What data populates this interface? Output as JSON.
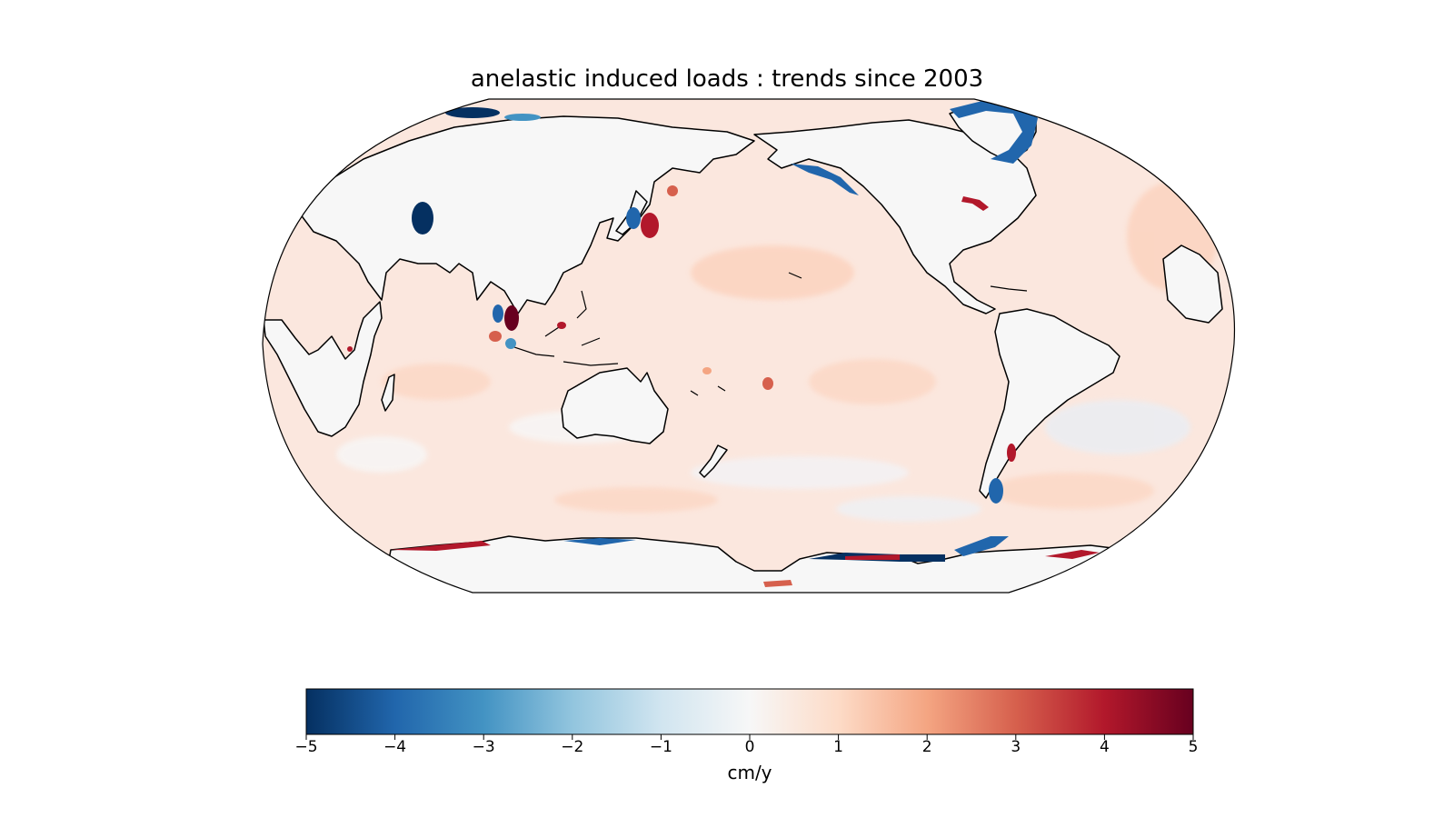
{
  "title": "anelastic induced loads : trends since 2003",
  "map": {
    "projection": "robinson",
    "center": "pacific",
    "background": "#f7f7f7",
    "coastline_color": "#000000",
    "features": [
      {
        "name": "hudson-bay-anomaly",
        "sign": "negative"
      },
      {
        "name": "greenland-anomaly",
        "sign": "negative"
      },
      {
        "name": "alaska-coast-anomaly",
        "sign": "negative"
      },
      {
        "name": "japan-anomaly",
        "sign": "positive"
      },
      {
        "name": "sumatra-anomaly",
        "sign": "positive"
      },
      {
        "name": "patagonia-anomaly",
        "sign": "mixed"
      },
      {
        "name": "antarctic-peninsula-anomaly",
        "sign": "negative"
      },
      {
        "name": "west-antarctica-anomaly",
        "sign": "mixed"
      }
    ]
  },
  "colorbar": {
    "colormap": "RdBu_r",
    "colors": [
      "#053061",
      "#2166ac",
      "#4393c3",
      "#92c5de",
      "#d1e5f0",
      "#f7f7f7",
      "#fddbc7",
      "#f4a582",
      "#d6604d",
      "#b2182b",
      "#67001f"
    ],
    "min": -5,
    "max": 5,
    "ticks": [
      "−5",
      "−4",
      "−3",
      "−2",
      "−1",
      "0",
      "1",
      "2",
      "3",
      "4",
      "5"
    ],
    "label": "cm/y"
  }
}
